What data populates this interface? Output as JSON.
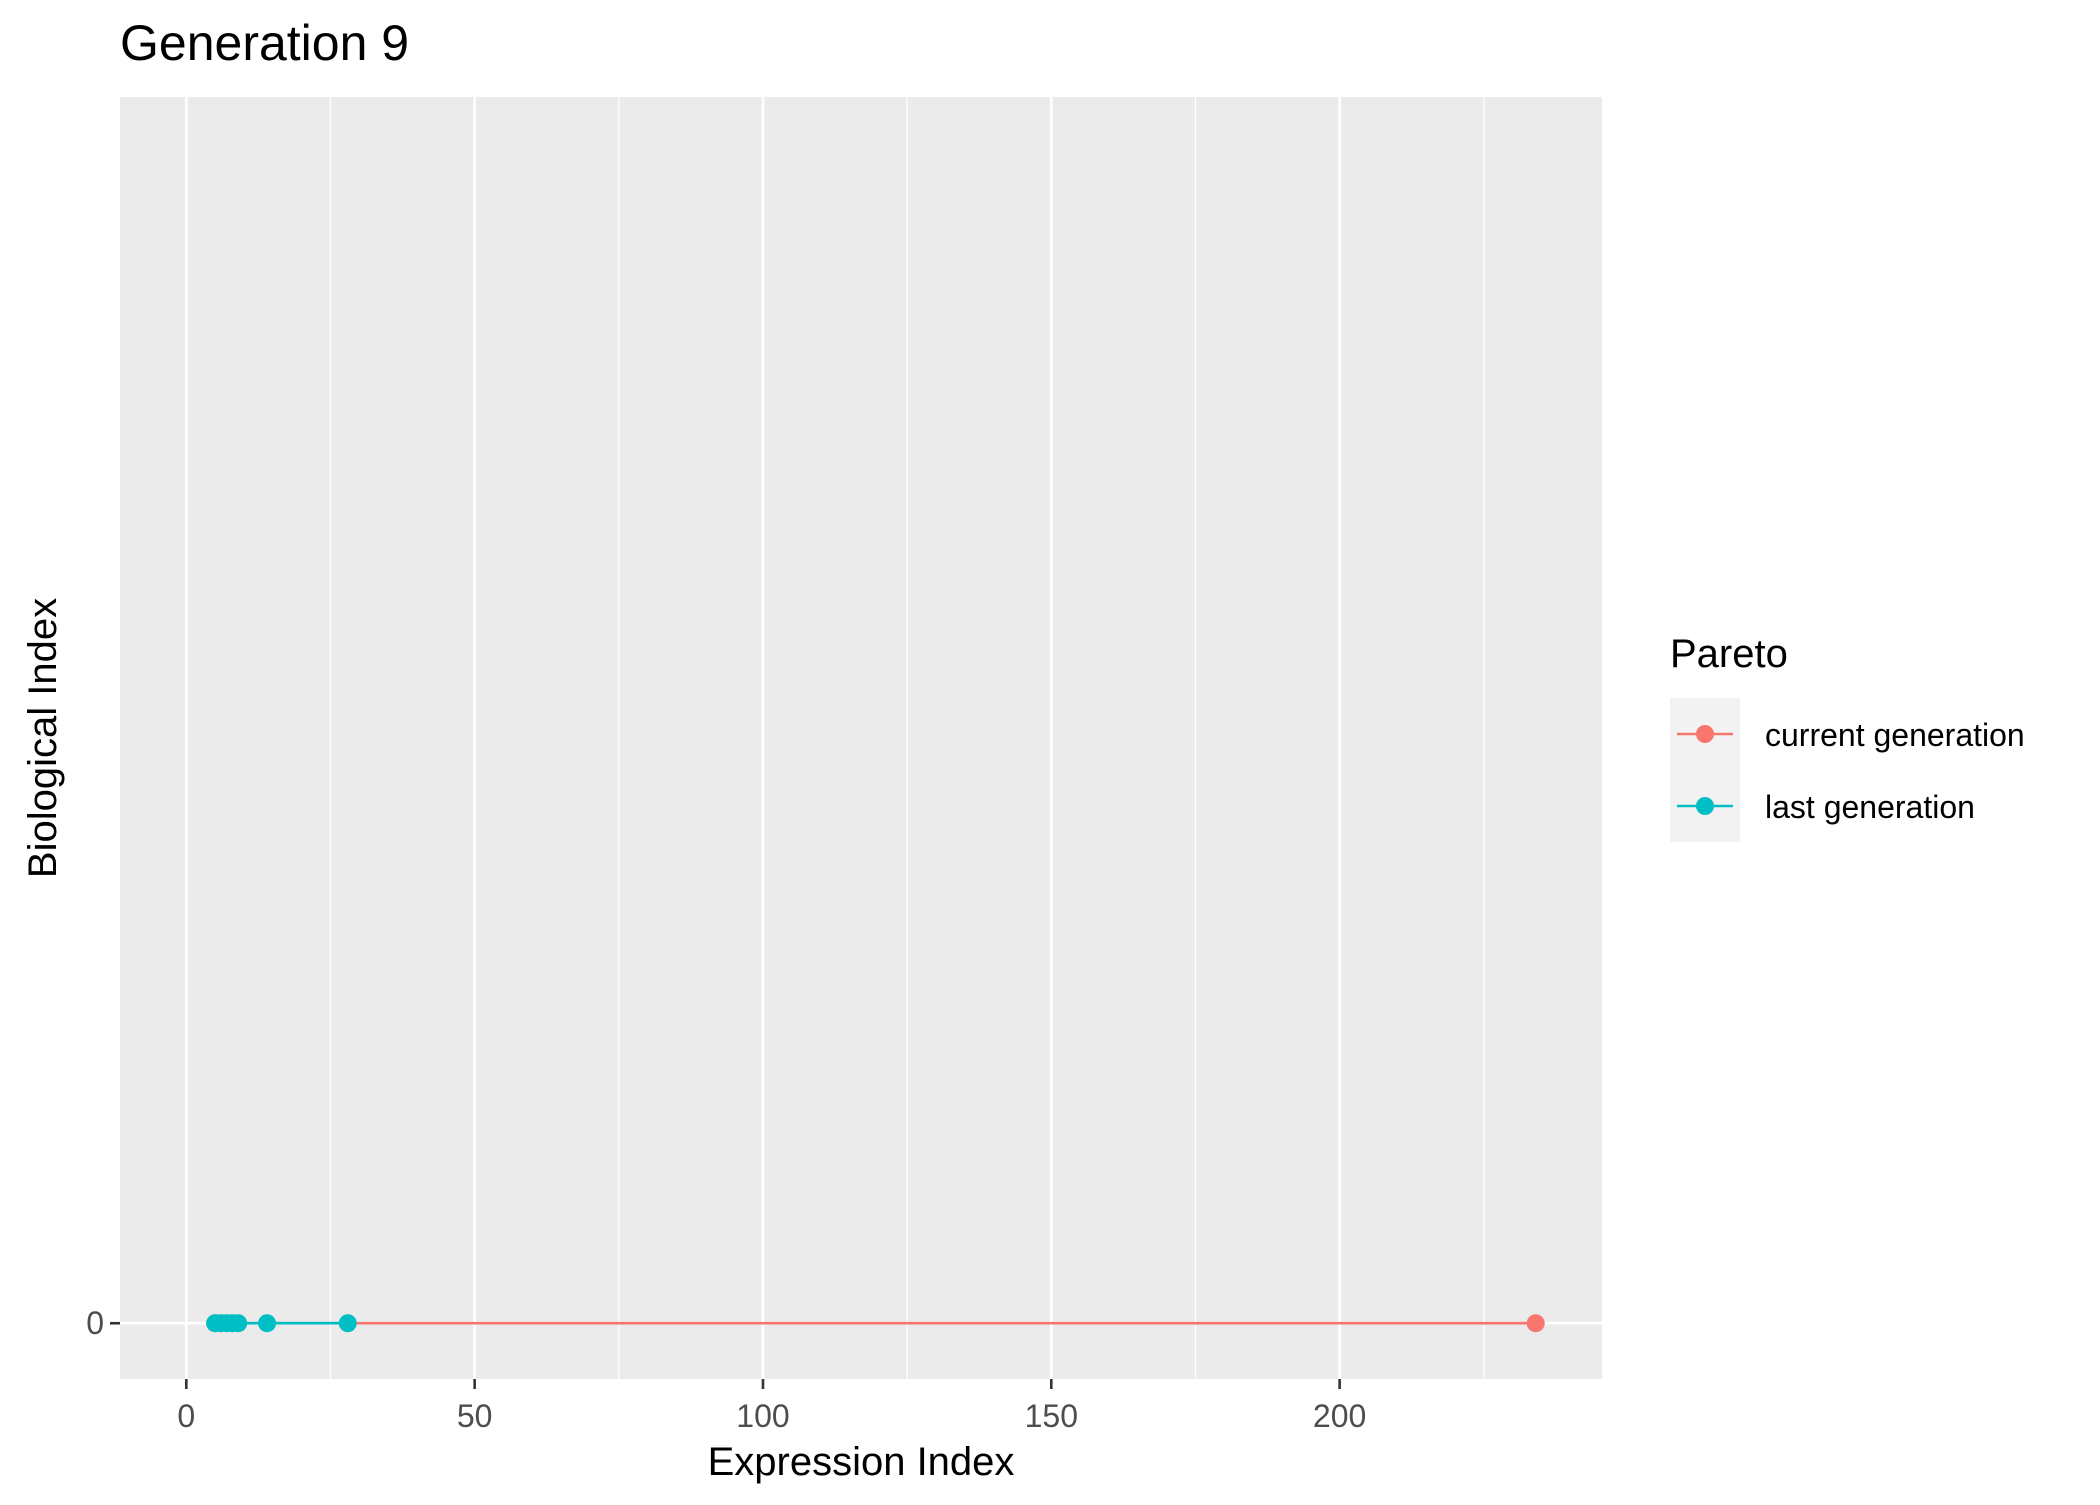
{
  "chart_data": {
    "type": "line",
    "title": "Generation 9",
    "xlabel": "Expression Index",
    "ylabel": "Biological Index",
    "xlim": [
      -11.5,
      245.5
    ],
    "x_ticks": [
      0,
      50,
      100,
      150,
      200
    ],
    "x_tick_labels": [
      "0",
      "50",
      "100",
      "150",
      "200"
    ],
    "x_minor_ticks": [
      25,
      75,
      125,
      175,
      225
    ],
    "y_ticks": [
      0
    ],
    "y_tick_labels": [
      "0"
    ],
    "grid": true,
    "background": "#EBEBEB",
    "legend": {
      "title": "Pareto",
      "position": "right"
    },
    "series": [
      {
        "name": "current generation",
        "color": "#F8766D",
        "points": [
          [
            5,
            0
          ],
          [
            234,
            0
          ]
        ]
      },
      {
        "name": "last generation",
        "color": "#00BFC4",
        "points": [
          [
            5,
            0
          ],
          [
            6,
            0
          ],
          [
            7,
            0
          ],
          [
            8,
            0
          ],
          [
            9,
            0
          ],
          [
            14,
            0
          ],
          [
            28,
            0
          ]
        ]
      }
    ]
  }
}
